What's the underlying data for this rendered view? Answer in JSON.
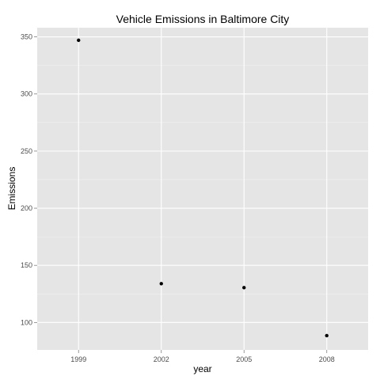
{
  "chart_data": {
    "type": "scatter",
    "title": "Vehicle Emissions in Baltimore City",
    "xlabel": "year",
    "ylabel": "Emissions",
    "x_categories": [
      "1999",
      "2002",
      "2005",
      "2008"
    ],
    "points": [
      {
        "x": "1999",
        "y": 347
      },
      {
        "x": "2002",
        "y": 134
      },
      {
        "x": "2005",
        "y": 130.5
      },
      {
        "x": "2008",
        "y": 88.5
      }
    ],
    "y_ticks": [
      100,
      150,
      200,
      250,
      300,
      350
    ],
    "y_tick_labels": [
      "100",
      "150",
      "200",
      "250",
      "300",
      "350"
    ],
    "ylim": [
      76,
      358
    ],
    "grid": true,
    "colors": {
      "panel_background": "#e5e5e5",
      "grid_major": "#ffffff",
      "grid_minor": "#f2f2f2",
      "point": "#000000"
    }
  }
}
